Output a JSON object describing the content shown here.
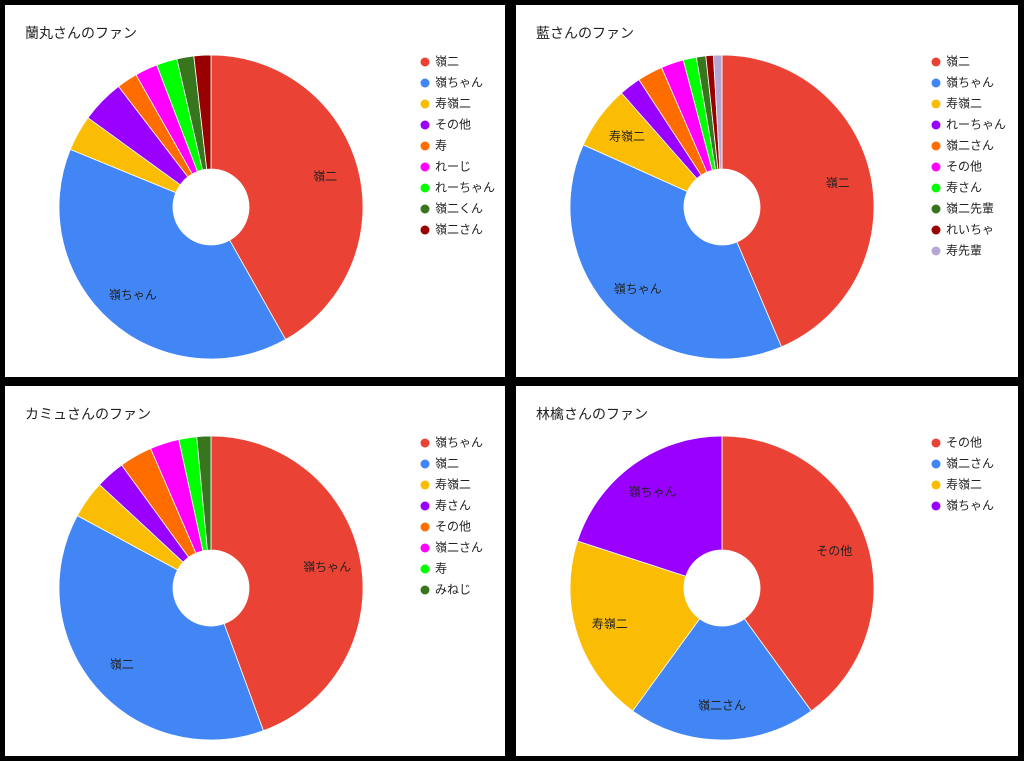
{
  "chart_data": [
    {
      "type": "pie",
      "title": "蘭丸さんのファン",
      "donut": true,
      "legend": "right",
      "categories": [
        "嶺二",
        "嶺ちゃん",
        "寿嶺二",
        "その他",
        "寿",
        "れーじ",
        "れーちゃん",
        "嶺二くん",
        "嶺二さん"
      ],
      "values": [
        41.8,
        39.3,
        3.8,
        4.6,
        2.2,
        2.4,
        2.2,
        1.8,
        1.8
      ],
      "colors": [
        "#ea4335",
        "#4285f4",
        "#fbbc04",
        "#9900ff",
        "#ff6d01",
        "#ff00ff",
        "#00ff00",
        "#38761d",
        "#990000"
      ]
    },
    {
      "type": "pie",
      "title": "藍さんのファン",
      "donut": true,
      "legend": "right",
      "categories": [
        "嶺二",
        "嶺ちゃん",
        "寿嶺二",
        "れーちゃん",
        "嶺二さん",
        "その他",
        "寿さん",
        "嶺二先輩",
        "れいちゃ",
        "寿先輩"
      ],
      "values": [
        43.6,
        38.1,
        6.8,
        2.3,
        2.7,
        2.4,
        1.4,
        1.0,
        0.8,
        0.9
      ],
      "colors": [
        "#ea4335",
        "#4285f4",
        "#fbbc04",
        "#9900ff",
        "#ff6d01",
        "#ff00ff",
        "#00ff00",
        "#38761d",
        "#990000",
        "#b4a7d6"
      ]
    },
    {
      "type": "pie",
      "title": "カミュさんのファン",
      "donut": true,
      "legend": "right",
      "categories": [
        "嶺ちゃん",
        "嶺二",
        "寿嶺二",
        "寿さん",
        "その他",
        "嶺二さん",
        "寿",
        "みねじ"
      ],
      "values": [
        44.4,
        38.5,
        4.0,
        3.1,
        3.5,
        3.1,
        1.9,
        1.5
      ],
      "colors": [
        "#ea4335",
        "#4285f4",
        "#fbbc04",
        "#9900ff",
        "#ff6d01",
        "#ff00ff",
        "#00ff00",
        "#38761d"
      ]
    },
    {
      "type": "pie",
      "title": "林檎さんのファン",
      "donut": true,
      "legend": "right",
      "categories": [
        "その他",
        "嶺二さん",
        "寿嶺二",
        "嶺ちゃん"
      ],
      "values": [
        40,
        20,
        20,
        20
      ],
      "colors": [
        "#ea4335",
        "#4285f4",
        "#fbbc04",
        "#9900ff"
      ]
    }
  ]
}
